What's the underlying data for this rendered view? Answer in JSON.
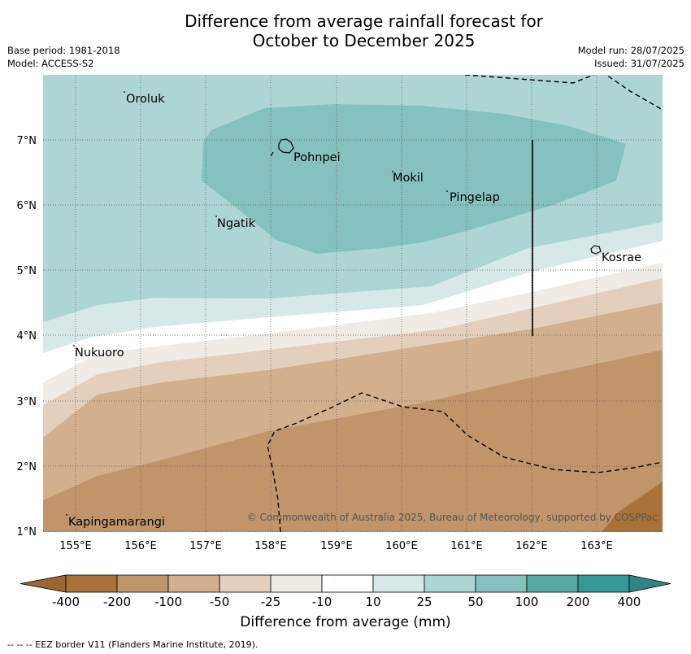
{
  "title_line1": "Difference from average rainfall forecast for",
  "title_line2": "October to December 2025",
  "meta": {
    "base_period": "Base period: 1981-2018",
    "model": "Model: ACCESS-S2",
    "model_run": "Model run: 28/07/2025",
    "issued": "Issued: 31/07/2025"
  },
  "map": {
    "lon_range": [
      154.5,
      164.0
    ],
    "lat_range": [
      1.0,
      8.0
    ],
    "grid": true,
    "lon_ticks": [
      "155°E",
      "156°E",
      "157°E",
      "158°E",
      "159°E",
      "160°E",
      "161°E",
      "162°E",
      "163°E"
    ],
    "lat_ticks": [
      "1°N",
      "2°N",
      "3°N",
      "4°N",
      "5°N",
      "6°N",
      "7°N"
    ],
    "places": [
      {
        "name": "Oroluk",
        "lon": 155.75,
        "lat": 7.7
      },
      {
        "name": "Pohnpei",
        "lon": 158.25,
        "lat": 6.87
      },
      {
        "name": "Mokil",
        "lon": 159.85,
        "lat": 6.5
      },
      {
        "name": "Pingelap",
        "lon": 160.7,
        "lat": 6.2
      },
      {
        "name": "Ngatik",
        "lon": 157.12,
        "lat": 5.82
      },
      {
        "name": "Kosrae",
        "lon": 163.0,
        "lat": 5.32
      },
      {
        "name": "Nukuoro",
        "lon": 154.95,
        "lat": 3.87
      },
      {
        "name": "Kapingamarangi",
        "lon": 154.85,
        "lat": 1.25
      }
    ],
    "copyright": "© Commonwealth of Australia 2025, Bureau of Meteorology, supported by COSPPac"
  },
  "colorbar": {
    "labels": [
      "-400",
      "-200",
      "-100",
      "-50",
      "-25",
      "-10",
      "10",
      "25",
      "50",
      "100",
      "200",
      "400"
    ],
    "colors": [
      "#a97239",
      "#c1956a",
      "#d3b08d",
      "#e3cfbb",
      "#f0ebe4",
      "#ffffff",
      "#d6e9e8",
      "#add5d4",
      "#84c1bf",
      "#56a9a7",
      "#339896"
    ],
    "under_color": "#9c6531",
    "over_color": "#2f8583",
    "title": "Difference from average (mm)"
  },
  "footer": "--  --  -- EEZ border V11 (Flanders Marine Institute, 2019)."
}
